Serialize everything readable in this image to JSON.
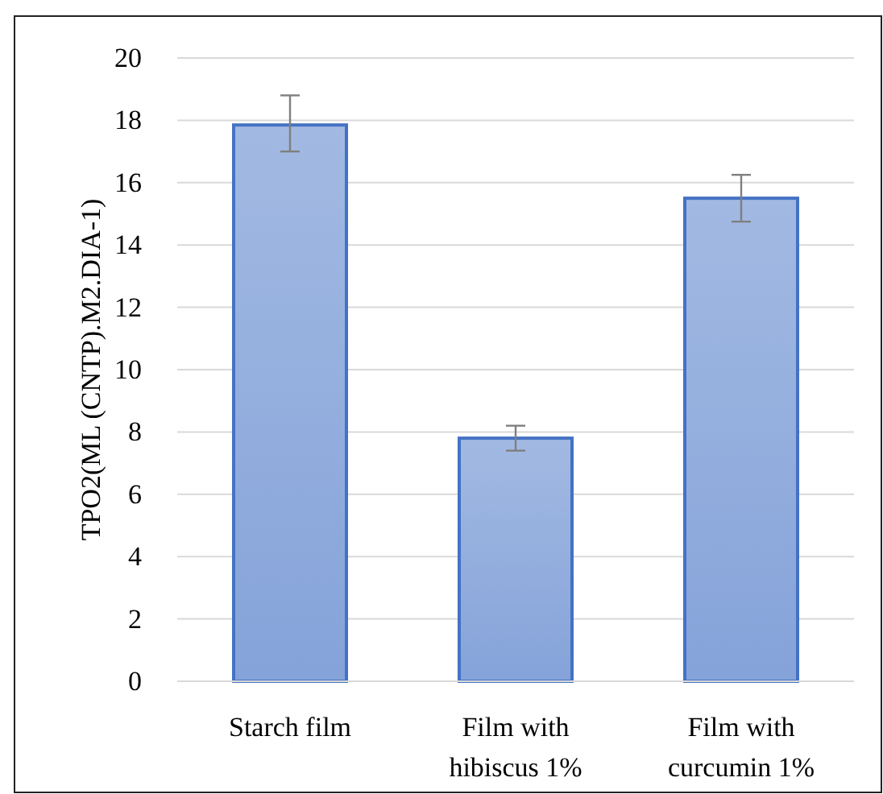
{
  "chart_data": {
    "type": "bar",
    "ylabel": "TPO2(ML (CNTP).M2.DIA-1)",
    "categories": [
      "Starch film",
      "Film with hibiscus 1%",
      "Film with curcumin 1%"
    ],
    "values": [
      17.85,
      7.8,
      15.5
    ],
    "errors": [
      [
        17.0,
        18.8
      ],
      [
        7.4,
        8.2
      ],
      [
        14.75,
        16.25
      ]
    ],
    "color": "#4472c4",
    "ylim": [
      0,
      20
    ],
    "yticks": [
      0,
      2,
      4,
      6,
      8,
      10,
      12,
      14,
      16,
      18,
      20
    ],
    "grid": "y"
  }
}
